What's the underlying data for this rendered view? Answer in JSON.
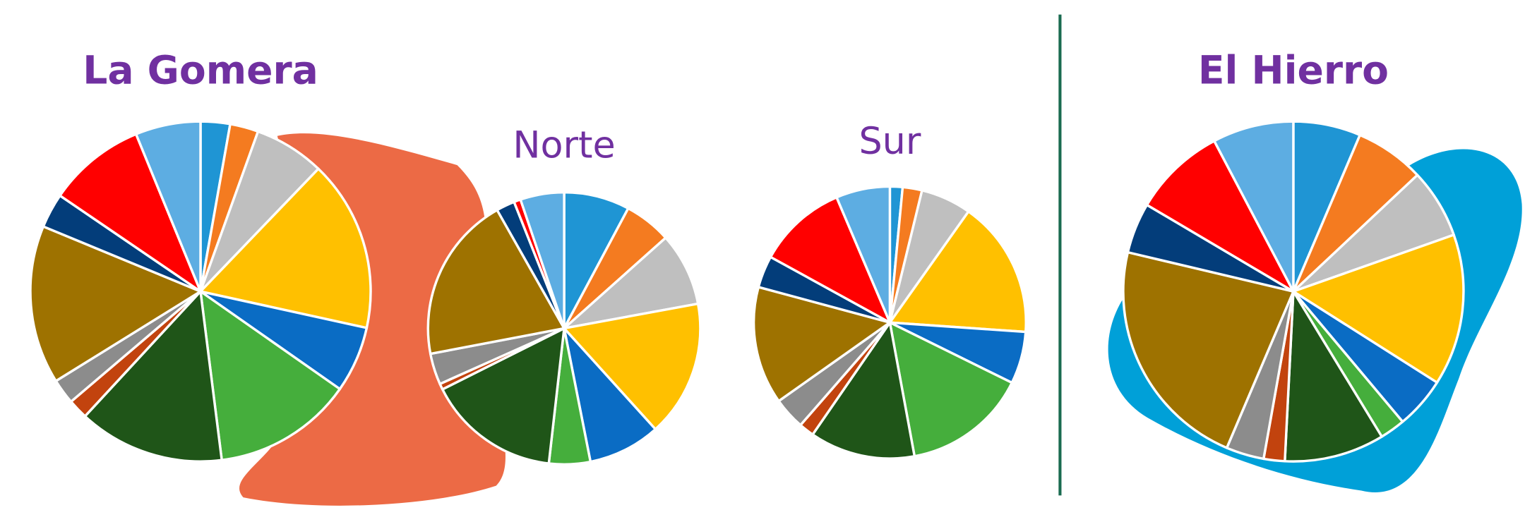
{
  "chart_data": [
    {
      "type": "pie",
      "title": "La Gomera",
      "values": [
        2.8,
        2.7,
        6.7,
        16.3,
        6.3,
        13.3,
        13.9,
        1.9,
        2.4,
        15.1,
        3.3,
        9.3,
        6.2
      ],
      "colors": [
        "#1f95d4",
        "#f47b20",
        "#bfbfbf",
        "#ffc000",
        "#0a6cc4",
        "#45ae3c",
        "#1f5518",
        "#c2430e",
        "#8c8c8c",
        "#9e7200",
        "#033d7a",
        "#ff0000",
        "#5dade2"
      ]
    },
    {
      "type": "pie",
      "title": "Norte",
      "values": [
        7.8,
        5.6,
        8.7,
        16.2,
        8.6,
        4.9,
        15.8,
        0.7,
        3.7,
        19.8,
        2.2,
        0.8,
        5.2
      ],
      "colors": [
        "#1f95d4",
        "#f47b20",
        "#bfbfbf",
        "#ffc000",
        "#0a6cc4",
        "#45ae3c",
        "#1f5518",
        "#c2430e",
        "#8c8c8c",
        "#9e7200",
        "#033d7a",
        "#ff0000",
        "#5dade2"
      ]
    },
    {
      "type": "pie",
      "title": "Sur",
      "values": [
        1.5,
        2.3,
        6,
        16.3,
        6.2,
        14.8,
        12.5,
        1.8,
        3.8,
        14,
        3.8,
        10.6,
        6.4
      ],
      "colors": [
        "#1f95d4",
        "#f47b20",
        "#bfbfbf",
        "#ffc000",
        "#0a6cc4",
        "#45ae3c",
        "#1f5518",
        "#c2430e",
        "#8c8c8c",
        "#9e7200",
        "#033d7a",
        "#ff0000",
        "#5dade2"
      ]
    },
    {
      "type": "pie",
      "title": "El Hierro",
      "values": [
        6.4,
        6.6,
        6.6,
        14.4,
        4.9,
        2.4,
        9.5,
        2,
        3.6,
        22.3,
        4.8,
        8.8,
        7.7
      ],
      "colors": [
        "#1f95d4",
        "#f47b20",
        "#bfbfbf",
        "#ffc000",
        "#0a6cc4",
        "#45ae3c",
        "#1f5518",
        "#c2430e",
        "#8c8c8c",
        "#9e7200",
        "#033d7a",
        "#ff0000",
        "#5dade2"
      ]
    }
  ]
}
